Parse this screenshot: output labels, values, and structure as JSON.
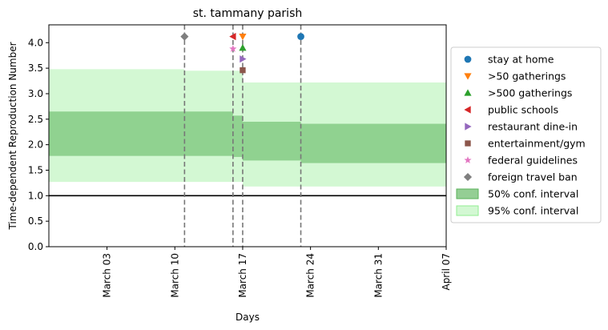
{
  "chart_data": {
    "type": "area",
    "title": "st. tammany parish",
    "xlabel": "Days",
    "ylabel": "Time-dependent Reproduction Number",
    "xlim": [
      "2020-02-26",
      "2020-04-07"
    ],
    "ylim": [
      0,
      4.35
    ],
    "xticks": [
      {
        "date": "2020-03-03",
        "label": "March 03"
      },
      {
        "date": "2020-03-10",
        "label": "March 10"
      },
      {
        "date": "2020-03-17",
        "label": "March 17"
      },
      {
        "date": "2020-03-24",
        "label": "March 24"
      },
      {
        "date": "2020-03-31",
        "label": "March 31"
      },
      {
        "date": "2020-04-07",
        "label": "April 07"
      }
    ],
    "yticks": [
      0.0,
      0.5,
      1.0,
      1.5,
      2.0,
      2.5,
      3.0,
      3.5,
      4.0
    ],
    "ytick_labels": [
      "0.0",
      "0.5",
      "1.0",
      "1.5",
      "2.0",
      "2.5",
      "3.0",
      "3.5",
      "4.0"
    ],
    "reference_line": 1.0,
    "ci50": [
      {
        "start": "2020-02-26",
        "end": "2020-03-16",
        "low": 1.78,
        "high": 2.65
      },
      {
        "start": "2020-03-16",
        "end": "2020-03-17",
        "low": 1.76,
        "high": 2.57
      },
      {
        "start": "2020-03-17",
        "end": "2020-03-23",
        "low": 1.69,
        "high": 2.45
      },
      {
        "start": "2020-03-23",
        "end": "2020-04-07",
        "low": 1.64,
        "high": 2.41
      }
    ],
    "ci95": [
      {
        "start": "2020-02-26",
        "end": "2020-03-11",
        "low": 1.27,
        "high": 3.48
      },
      {
        "start": "2020-03-11",
        "end": "2020-03-17",
        "low": 1.27,
        "high": 3.45
      },
      {
        "start": "2020-03-17",
        "end": "2020-04-07",
        "low": 1.18,
        "high": 3.22
      }
    ],
    "vlines": [
      "2020-03-11",
      "2020-03-16",
      "2020-03-17",
      "2020-03-23"
    ],
    "events": [
      {
        "name": "stay at home",
        "date": "2020-03-23",
        "y": 4.12,
        "marker": "circle",
        "color": "#1f77b4"
      },
      {
        "name": ">50 gatherings",
        "date": "2020-03-17",
        "y": 4.12,
        "marker": "triangle-down",
        "color": "#ff7f0e"
      },
      {
        "name": ">500 gatherings",
        "date": "2020-03-17",
        "y": 3.9,
        "marker": "triangle-up",
        "color": "#2ca02c"
      },
      {
        "name": "public schools",
        "date": "2020-03-16",
        "y": 4.12,
        "marker": "triangle-left",
        "color": "#d62728"
      },
      {
        "name": "restaurant dine-in",
        "date": "2020-03-17",
        "y": 3.68,
        "marker": "triangle-right",
        "color": "#9467bd"
      },
      {
        "name": "entertainment/gym",
        "date": "2020-03-17",
        "y": 3.46,
        "marker": "square",
        "color": "#8c564b"
      },
      {
        "name": "federal guidelines",
        "date": "2020-03-16",
        "y": 3.88,
        "marker": "star",
        "color": "#e377c2"
      },
      {
        "name": "foreign travel ban",
        "date": "2020-03-11",
        "y": 4.12,
        "marker": "diamond",
        "color": "#7f7f7f"
      }
    ],
    "legend": {
      "placement": "right",
      "entries": [
        {
          "label": "stay at home",
          "marker": "circle",
          "color": "#1f77b4"
        },
        {
          "label": ">50 gatherings",
          "marker": "triangle-down",
          "color": "#ff7f0e"
        },
        {
          "label": ">500 gatherings",
          "marker": "triangle-up",
          "color": "#2ca02c"
        },
        {
          "label": "public schools",
          "marker": "triangle-left",
          "color": "#d62728"
        },
        {
          "label": "restaurant dine-in",
          "marker": "triangle-right",
          "color": "#9467bd"
        },
        {
          "label": "entertainment/gym",
          "marker": "square",
          "color": "#8c564b"
        },
        {
          "label": "federal guidelines",
          "marker": "star",
          "color": "#e377c2"
        },
        {
          "label": "foreign travel ban",
          "marker": "diamond",
          "color": "#7f7f7f"
        },
        {
          "label": "50% conf. interval",
          "marker": "patch",
          "color": "#5ab35a"
        },
        {
          "label": "95% conf. interval",
          "marker": "patch",
          "color": "#90ee90"
        }
      ]
    },
    "colors": {
      "ci50_fill": "#5ab35a",
      "ci95_fill": "#90ee90",
      "reference_line": "#000000",
      "vline": "#777777"
    },
    "grid": false
  }
}
